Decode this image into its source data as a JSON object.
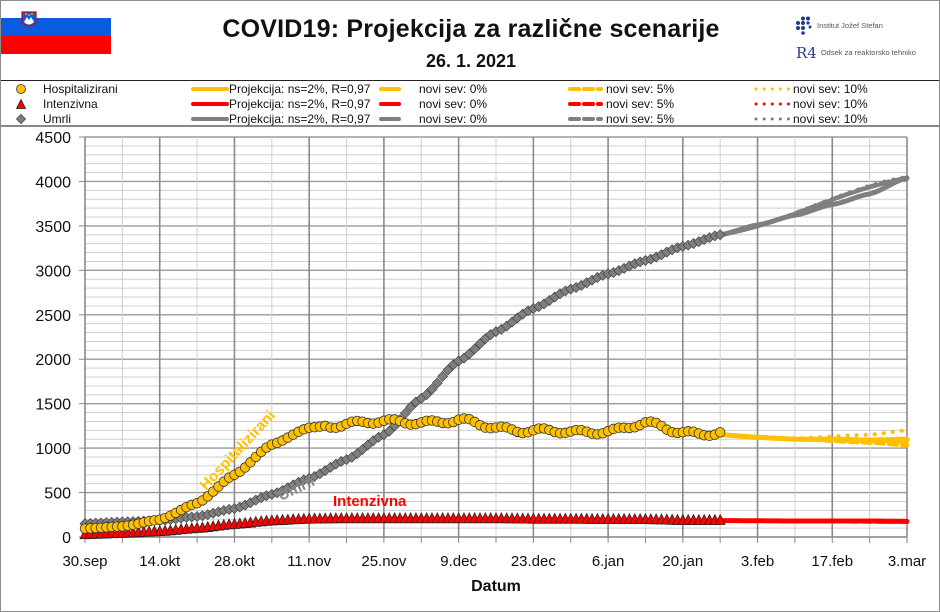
{
  "header": {
    "title": "COVID19: Projekcija za različne scenarije",
    "date": "26. 1. 2021",
    "institute": "Institut Jožef Stefan",
    "department": "Odsek za reaktorsko tehniko",
    "department_logo": "R4"
  },
  "legend": {
    "rows": [
      {
        "marker": "circle",
        "name": "Hospitalizirani",
        "color": "#FFC000",
        "proj": "Projekcija: ns=2%, R=0,97",
        "s0": "novi sev: 0%",
        "s5": "novi sev: 5%",
        "s10": "novi sev: 10%"
      },
      {
        "marker": "triangle",
        "name": "Intenzivna",
        "color": "#FF0000",
        "proj": "Projekcija: ns=2%, R=0,97",
        "s0": "novi sev: 0%",
        "s5": "novi sev: 5%",
        "s10": "novi sev: 10%"
      },
      {
        "marker": "diamond",
        "name": "Umrli",
        "color": "#7F7F7F",
        "proj": "Projekcija: ns=2%, R=0,97",
        "s0": "novi sev: 0%",
        "s5": "novi sev: 5%",
        "s10": "novi sev: 10%"
      }
    ]
  },
  "annotations": {
    "hosp": "Hospitalizirani",
    "umrli": "Umrli",
    "intenzivna": "Intenzivna"
  },
  "chart_data": {
    "type": "line",
    "title": "COVID19: Projekcija za različne scenarije",
    "subtitle": "26. 1. 2021",
    "xlabel": "Datum",
    "ylabel": "",
    "ylim": [
      0,
      4500
    ],
    "yticks": [
      0,
      500,
      1000,
      1500,
      2000,
      2500,
      3000,
      3500,
      4000,
      4500
    ],
    "xticks": [
      "30.sep",
      "14.okt",
      "28.okt",
      "11.nov",
      "25.nov",
      "9.dec",
      "23.dec",
      "6.jan",
      "20.jan",
      "3.feb",
      "17.feb",
      "3.mar"
    ],
    "x_days_range": [
      0,
      154
    ],
    "grid": true,
    "legend_position": "top",
    "colors": {
      "hosp": "#FFC000",
      "icu": "#FF0000",
      "deaths": "#7F7F7F"
    },
    "series": [
      {
        "name": "Hospitalizirani",
        "kind": "observed",
        "marker": "circle",
        "x_days": [
          0,
          7,
          14,
          21,
          28,
          35,
          42,
          49,
          56,
          63,
          70,
          77,
          84,
          91,
          98,
          105,
          112,
          119
        ],
        "values": [
          95,
          120,
          195,
          380,
          700,
          1040,
          1230,
          1280,
          1290,
          1300,
          1305,
          1230,
          1200,
          1170,
          1200,
          1270,
          1180,
          1170
        ]
      },
      {
        "name": "Intenzivna",
        "kind": "observed",
        "marker": "triangle",
        "x_days": [
          0,
          7,
          14,
          21,
          28,
          35,
          42,
          49,
          56,
          63,
          70,
          77,
          84,
          91,
          98,
          105,
          112,
          119
        ],
        "values": [
          25,
          40,
          60,
          95,
          140,
          180,
          200,
          205,
          205,
          205,
          205,
          205,
          200,
          200,
          195,
          195,
          185,
          185
        ]
      },
      {
        "name": "Umrli",
        "kind": "observed",
        "marker": "diamond",
        "x_days": [
          0,
          7,
          14,
          21,
          28,
          35,
          42,
          49,
          56,
          63,
          70,
          77,
          84,
          91,
          98,
          105,
          112,
          119
        ],
        "values": [
          150,
          170,
          185,
          230,
          320,
          480,
          660,
          870,
          1150,
          1560,
          1980,
          2310,
          2570,
          2790,
          2960,
          3110,
          3270,
          3400
        ]
      },
      {
        "name": "Hospitalizirani – Projekcija: ns=2%, R=0,97",
        "kind": "projection",
        "x_days": [
          119,
          126,
          133,
          140,
          147,
          154
        ],
        "values": [
          1150,
          1120,
          1100,
          1100,
          1090,
          1100
        ]
      },
      {
        "name": "Hospitalizirani – novi sev: 0%",
        "kind": "scenario",
        "x_days": [
          119,
          133,
          147,
          154
        ],
        "values": [
          1150,
          1100,
          1080,
          1070
        ]
      },
      {
        "name": "Hospitalizirani – novi sev: 5%",
        "kind": "scenario",
        "x_days": [
          119,
          133,
          147,
          154
        ],
        "values": [
          1150,
          1100,
          1060,
          1030
        ]
      },
      {
        "name": "Hospitalizirani – novi sev: 10%",
        "kind": "scenario",
        "x_days": [
          119,
          133,
          147,
          154
        ],
        "values": [
          1150,
          1110,
          1150,
          1200
        ]
      },
      {
        "name": "Intenzivna – Projekcija: ns=2%, R=0,97",
        "kind": "projection",
        "x_days": [
          119,
          133,
          147,
          154
        ],
        "values": [
          185,
          180,
          180,
          175
        ]
      },
      {
        "name": "Intenzivna – novi sev: 0%",
        "kind": "scenario",
        "x_days": [
          119,
          154
        ],
        "values": [
          185,
          175
        ]
      },
      {
        "name": "Intenzivna – novi sev: 5%",
        "kind": "scenario",
        "x_days": [
          119,
          154
        ],
        "values": [
          185,
          170
        ]
      },
      {
        "name": "Intenzivna – novi sev: 10%",
        "kind": "scenario",
        "x_days": [
          119,
          154
        ],
        "values": [
          185,
          185
        ]
      },
      {
        "name": "Umrli – Projekcija: ns=2%, R=0,97",
        "kind": "projection",
        "x_days": [
          119,
          126,
          133,
          140,
          147,
          154
        ],
        "values": [
          3400,
          3510,
          3620,
          3740,
          3860,
          4040
        ]
      },
      {
        "name": "Umrli – novi sev: 0%",
        "kind": "scenario",
        "x_days": [
          119,
          154
        ],
        "values": [
          3400,
          4030
        ]
      },
      {
        "name": "Umrli – novi sev: 5%",
        "kind": "scenario",
        "x_days": [
          119,
          154
        ],
        "values": [
          3400,
          4040
        ]
      },
      {
        "name": "Umrli – novi sev: 10%",
        "kind": "scenario",
        "x_days": [
          119,
          154
        ],
        "values": [
          3400,
          4050
        ]
      }
    ]
  }
}
